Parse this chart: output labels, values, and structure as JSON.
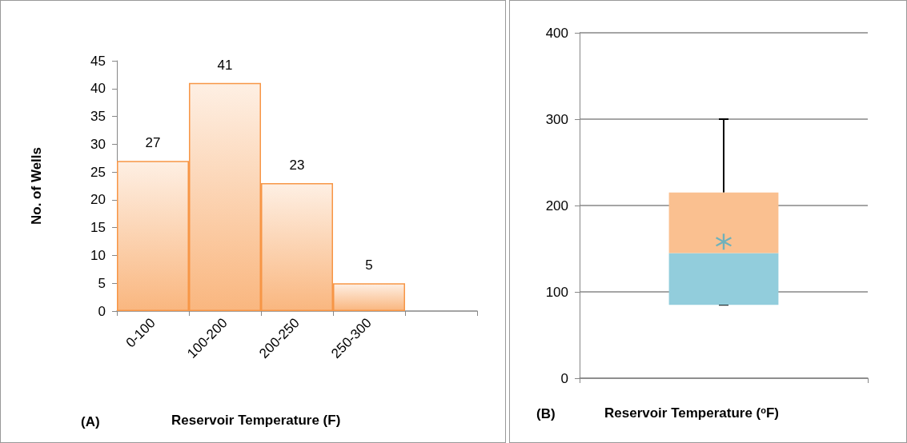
{
  "chart_data": [
    {
      "type": "bar",
      "xlabel": "Reservoir Temperature (F)",
      "ylabel": "No. of Wells",
      "annotations": [
        "(A)"
      ],
      "categories": [
        "0-100",
        "100-200",
        "200-250",
        "250-300",
        null
      ],
      "values": [
        27,
        41,
        23,
        5,
        null
      ],
      "color": "#f79646",
      "data_labels": true,
      "ylim": [
        0,
        45
      ],
      "yticks": [
        0,
        5,
        10,
        15,
        20,
        25,
        30,
        35,
        40,
        45
      ],
      "grid": false
    },
    {
      "type": "box",
      "xlabel": "Reservoir Temperature ($^{o}$F)",
      "annotations": [
        "(B)"
      ],
      "categories": [
        null
      ],
      "series": [
        {
          "type": "box",
          "color": "#92cddc",
          "boxes": [
            {
              "low": 85,
              "q1": 85,
              "median": 145,
              "q3": 215,
              "high": 300
            }
          ]
        },
        {
          "type": "scatter",
          "color": "#4bacc6",
          "values": [
            158
          ],
          "marker": "star"
        }
      ],
      "ylim": [
        0,
        400
      ],
      "yticks": [
        0,
        100,
        200,
        300,
        400
      ],
      "grid": "y"
    }
  ]
}
